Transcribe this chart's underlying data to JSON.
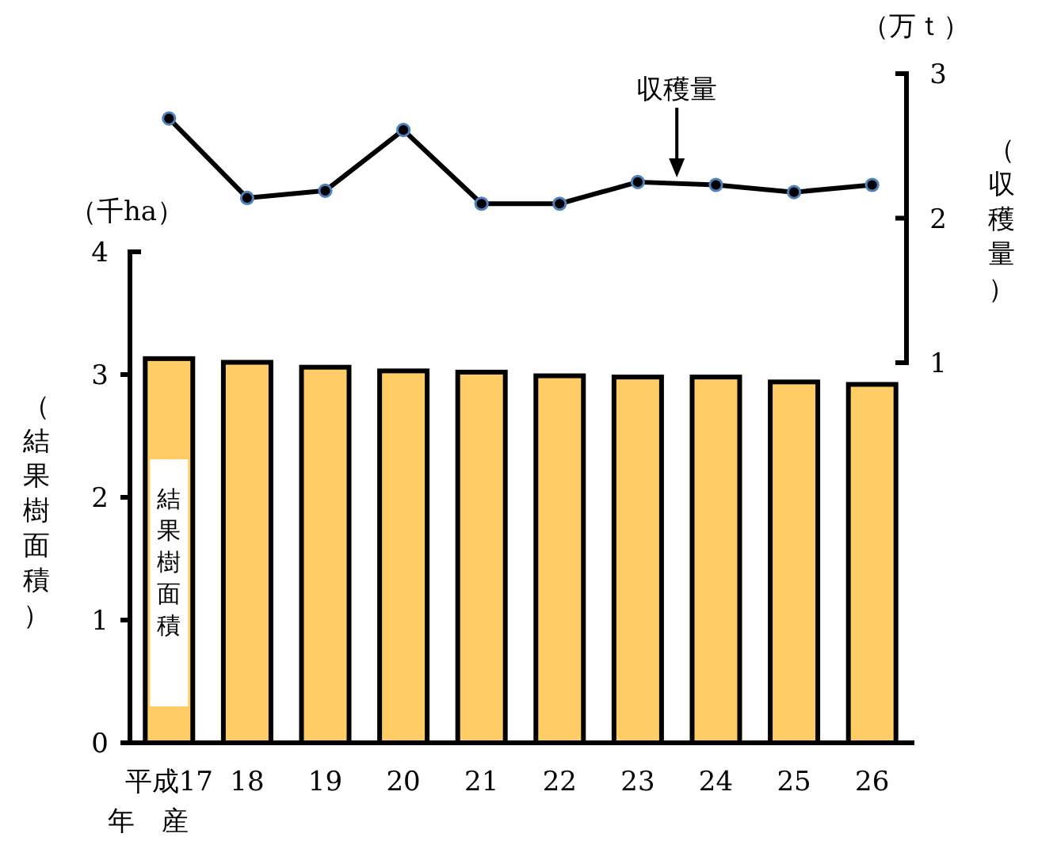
{
  "chart_data": [
    {
      "type": "bar",
      "ylabel": "（結果樹面積）",
      "categories": [
        "平成17",
        "18",
        "19",
        "20",
        "21",
        "22",
        "23",
        "24",
        "25",
        "26"
      ],
      "series": [
        {
          "name": "結果樹面積",
          "color": "#ffcc66",
          "values": [
            3.13,
            3.1,
            3.06,
            3.03,
            3.02,
            2.99,
            2.98,
            2.98,
            2.94,
            2.92
          ]
        }
      ],
      "ylim": [
        0,
        4
      ],
      "yticks": [
        0,
        1,
        2,
        3,
        4
      ],
      "annotations": [
        "（千ha）",
        "年　産"
      ]
    },
    {
      "type": "line",
      "ylabel": "（収穫量）",
      "categories": [
        null,
        null,
        null,
        null,
        null,
        null,
        null,
        null,
        null,
        null
      ],
      "series": [
        {
          "name": "収穫量",
          "color": "#000000",
          "values": [
            2.69,
            2.14,
            2.19,
            2.61,
            2.1,
            2.1,
            2.25,
            2.23,
            2.18,
            2.23
          ]
        }
      ],
      "ylim": [
        1,
        3
      ],
      "yticks": [
        1,
        2,
        3
      ],
      "marker": "circle",
      "annotations": [
        "（万ｔ）"
      ]
    }
  ]
}
